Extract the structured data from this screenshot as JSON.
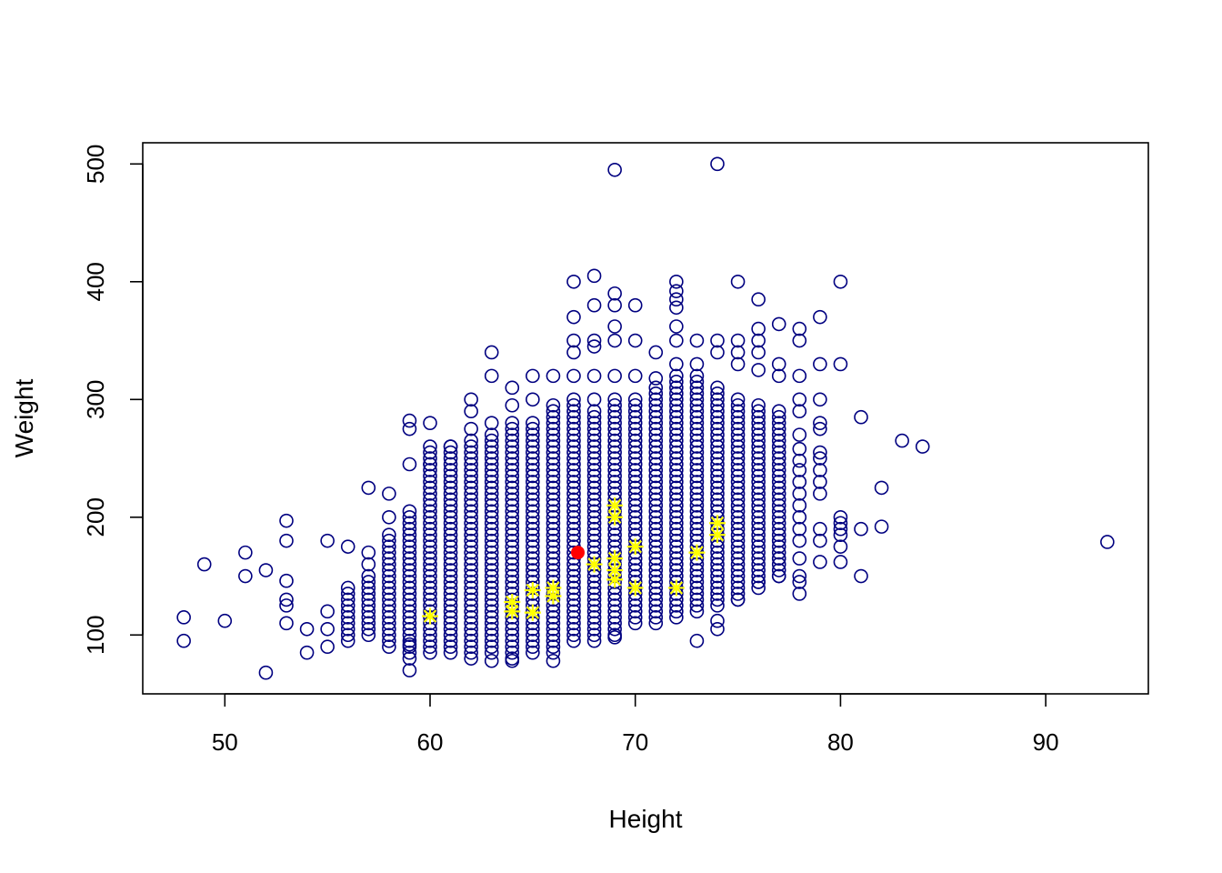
{
  "chart_data": {
    "type": "scatter",
    "title": "",
    "xlabel": "Height",
    "ylabel": "Weight",
    "xlim": [
      46,
      95
    ],
    "ylim": [
      50,
      518
    ],
    "x_ticks": [
      50,
      60,
      70,
      80,
      90
    ],
    "y_ticks": [
      100,
      200,
      300,
      400,
      500
    ],
    "grid": false,
    "legend": "none",
    "colors": {
      "points": "#000080",
      "highlights": "#FFFF00",
      "mean": "#FF0000"
    },
    "series": [
      {
        "marker": "open-circle",
        "color": "#000080",
        "columns": [
          {
            "x": 59,
            "ymin": 80,
            "ymax": 205
          },
          {
            "x": 60,
            "ymin": 85,
            "ymax": 260
          },
          {
            "x": 61,
            "ymin": 85,
            "ymax": 260
          },
          {
            "x": 62,
            "ymin": 80,
            "ymax": 265
          },
          {
            "x": 63,
            "ymin": 85,
            "ymax": 270
          },
          {
            "x": 64,
            "ymin": 80,
            "ymax": 280
          },
          {
            "x": 65,
            "ymin": 85,
            "ymax": 280
          },
          {
            "x": 66,
            "ymin": 85,
            "ymax": 295
          },
          {
            "x": 67,
            "ymin": 95,
            "ymax": 300
          },
          {
            "x": 68,
            "ymin": 100,
            "ymax": 290
          },
          {
            "x": 69,
            "ymin": 100,
            "ymax": 300
          },
          {
            "x": 70,
            "ymin": 110,
            "ymax": 300
          },
          {
            "x": 71,
            "ymin": 110,
            "ymax": 310
          },
          {
            "x": 72,
            "ymin": 115,
            "ymax": 320
          },
          {
            "x": 73,
            "ymin": 120,
            "ymax": 320
          },
          {
            "x": 74,
            "ymin": 125,
            "ymax": 310
          },
          {
            "x": 75,
            "ymin": 130,
            "ymax": 300
          },
          {
            "x": 76,
            "ymin": 140,
            "ymax": 295
          },
          {
            "x": 77,
            "ymin": 150,
            "ymax": 290
          },
          {
            "x": 58,
            "ymin": 90,
            "ymax": 185
          },
          {
            "x": 57,
            "ymin": 100,
            "ymax": 150
          },
          {
            "x": 56,
            "ymin": 95,
            "ymax": 140
          }
        ],
        "points": [
          [
            48,
            115
          ],
          [
            48,
            95
          ],
          [
            49,
            160
          ],
          [
            50,
            112
          ],
          [
            51,
            170
          ],
          [
            51,
            150
          ],
          [
            52,
            155
          ],
          [
            52,
            68
          ],
          [
            53,
            197
          ],
          [
            53,
            180
          ],
          [
            53,
            146
          ],
          [
            53,
            130
          ],
          [
            53,
            125
          ],
          [
            53,
            110
          ],
          [
            54,
            105
          ],
          [
            54,
            85
          ],
          [
            55,
            180
          ],
          [
            55,
            120
          ],
          [
            55,
            105
          ],
          [
            55,
            90
          ],
          [
            56,
            175
          ],
          [
            57,
            225
          ],
          [
            57,
            170
          ],
          [
            57,
            160
          ],
          [
            58,
            220
          ],
          [
            58,
            200
          ],
          [
            59,
            282
          ],
          [
            59,
            275
          ],
          [
            59,
            245
          ],
          [
            59,
            70
          ],
          [
            59,
            92
          ],
          [
            60,
            280
          ],
          [
            60,
            245
          ],
          [
            61,
            260
          ],
          [
            62,
            300
          ],
          [
            62,
            290
          ],
          [
            62,
            275
          ],
          [
            63,
            340
          ],
          [
            63,
            320
          ],
          [
            63,
            280
          ],
          [
            63,
            78
          ],
          [
            64,
            310
          ],
          [
            64,
            295
          ],
          [
            64,
            78
          ],
          [
            65,
            320
          ],
          [
            65,
            300
          ],
          [
            66,
            320
          ],
          [
            66,
            78
          ],
          [
            67,
            400
          ],
          [
            67,
            370
          ],
          [
            67,
            350
          ],
          [
            67,
            340
          ],
          [
            67,
            320
          ],
          [
            68,
            405
          ],
          [
            68,
            380
          ],
          [
            68,
            350
          ],
          [
            68,
            345
          ],
          [
            68,
            320
          ],
          [
            68,
            300
          ],
          [
            68,
            95
          ],
          [
            69,
            495
          ],
          [
            69,
            390
          ],
          [
            69,
            380
          ],
          [
            69,
            362
          ],
          [
            69,
            350
          ],
          [
            69,
            320
          ],
          [
            69,
            98
          ],
          [
            70,
            380
          ],
          [
            70,
            350
          ],
          [
            70,
            320
          ],
          [
            71,
            340
          ],
          [
            71,
            318
          ],
          [
            72,
            400
          ],
          [
            72,
            392
          ],
          [
            72,
            385
          ],
          [
            72,
            378
          ],
          [
            72,
            362
          ],
          [
            72,
            350
          ],
          [
            72,
            330
          ],
          [
            73,
            350
          ],
          [
            73,
            330
          ],
          [
            73,
            95
          ],
          [
            74,
            500
          ],
          [
            74,
            350
          ],
          [
            74,
            340
          ],
          [
            74,
            112
          ],
          [
            74,
            105
          ],
          [
            75,
            400
          ],
          [
            75,
            350
          ],
          [
            75,
            340
          ],
          [
            75,
            330
          ],
          [
            75,
            130
          ],
          [
            76,
            385
          ],
          [
            76,
            360
          ],
          [
            76,
            350
          ],
          [
            76,
            340
          ],
          [
            76,
            325
          ],
          [
            76,
            145
          ],
          [
            77,
            364
          ],
          [
            77,
            330
          ],
          [
            77,
            320
          ],
          [
            77,
            150
          ],
          [
            77,
            165
          ],
          [
            77,
            180
          ],
          [
            78,
            360
          ],
          [
            78,
            350
          ],
          [
            78,
            320
          ],
          [
            78,
            300
          ],
          [
            78,
            290
          ],
          [
            78,
            270
          ],
          [
            78,
            258
          ],
          [
            78,
            248
          ],
          [
            78,
            240
          ],
          [
            78,
            230
          ],
          [
            78,
            220
          ],
          [
            78,
            210
          ],
          [
            78,
            200
          ],
          [
            78,
            190
          ],
          [
            78,
            180
          ],
          [
            78,
            165
          ],
          [
            78,
            150
          ],
          [
            78,
            145
          ],
          [
            78,
            135
          ],
          [
            79,
            370
          ],
          [
            79,
            330
          ],
          [
            79,
            300
          ],
          [
            79,
            280
          ],
          [
            79,
            275
          ],
          [
            79,
            255
          ],
          [
            79,
            250
          ],
          [
            79,
            240
          ],
          [
            79,
            230
          ],
          [
            79,
            220
          ],
          [
            79,
            190
          ],
          [
            79,
            180
          ],
          [
            79,
            162
          ],
          [
            80,
            400
          ],
          [
            80,
            330
          ],
          [
            80,
            200
          ],
          [
            80,
            195
          ],
          [
            80,
            190
          ],
          [
            80,
            185
          ],
          [
            80,
            175
          ],
          [
            80,
            162
          ],
          [
            81,
            285
          ],
          [
            81,
            190
          ],
          [
            81,
            150
          ],
          [
            82,
            225
          ],
          [
            82,
            192
          ],
          [
            83,
            265
          ],
          [
            84,
            260
          ],
          [
            93,
            179
          ]
        ]
      },
      {
        "marker": "asterisk",
        "color": "#FFFF00",
        "points": [
          [
            60,
            116
          ],
          [
            64,
            128
          ],
          [
            64,
            120
          ],
          [
            65,
            138
          ],
          [
            65,
            119
          ],
          [
            66,
            140
          ],
          [
            66,
            133
          ],
          [
            68,
            160
          ],
          [
            69,
            210
          ],
          [
            69,
            200
          ],
          [
            69,
            165
          ],
          [
            69,
            155
          ],
          [
            69,
            147
          ],
          [
            70,
            175
          ],
          [
            70,
            140
          ],
          [
            72,
            140
          ],
          [
            73,
            170
          ],
          [
            74,
            195
          ],
          [
            74,
            185
          ]
        ]
      },
      {
        "marker": "filled-circle",
        "color": "#FF0000",
        "points": [
          [
            67.2,
            170
          ]
        ]
      }
    ]
  }
}
